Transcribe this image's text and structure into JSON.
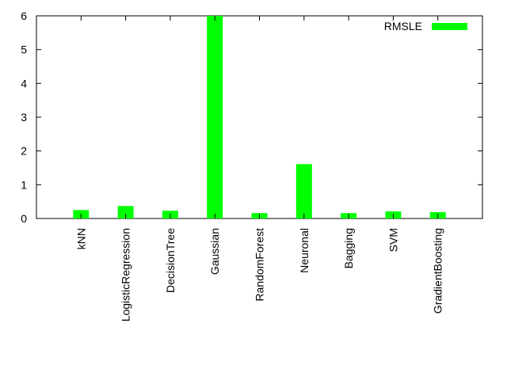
{
  "chart_data": {
    "type": "bar",
    "categories": [
      "kNN",
      "LogisticRegression",
      "DecisionTree",
      "Gaussian",
      "RandomForest",
      "Neuronal",
      "Bagging",
      "SVM",
      "GradientBoosting"
    ],
    "series": [
      {
        "name": "RMSLE",
        "values": [
          0.25,
          0.37,
          0.23,
          6.0,
          0.16,
          1.61,
          0.16,
          0.21,
          0.19
        ]
      }
    ],
    "title": "",
    "xlabel": "",
    "ylabel": "",
    "ylim": [
      0,
      6
    ],
    "yticks": [
      0,
      1,
      2,
      3,
      4,
      5,
      6
    ],
    "grid": false,
    "legend_position": "top-right",
    "bar_color": "#00ff00"
  }
}
